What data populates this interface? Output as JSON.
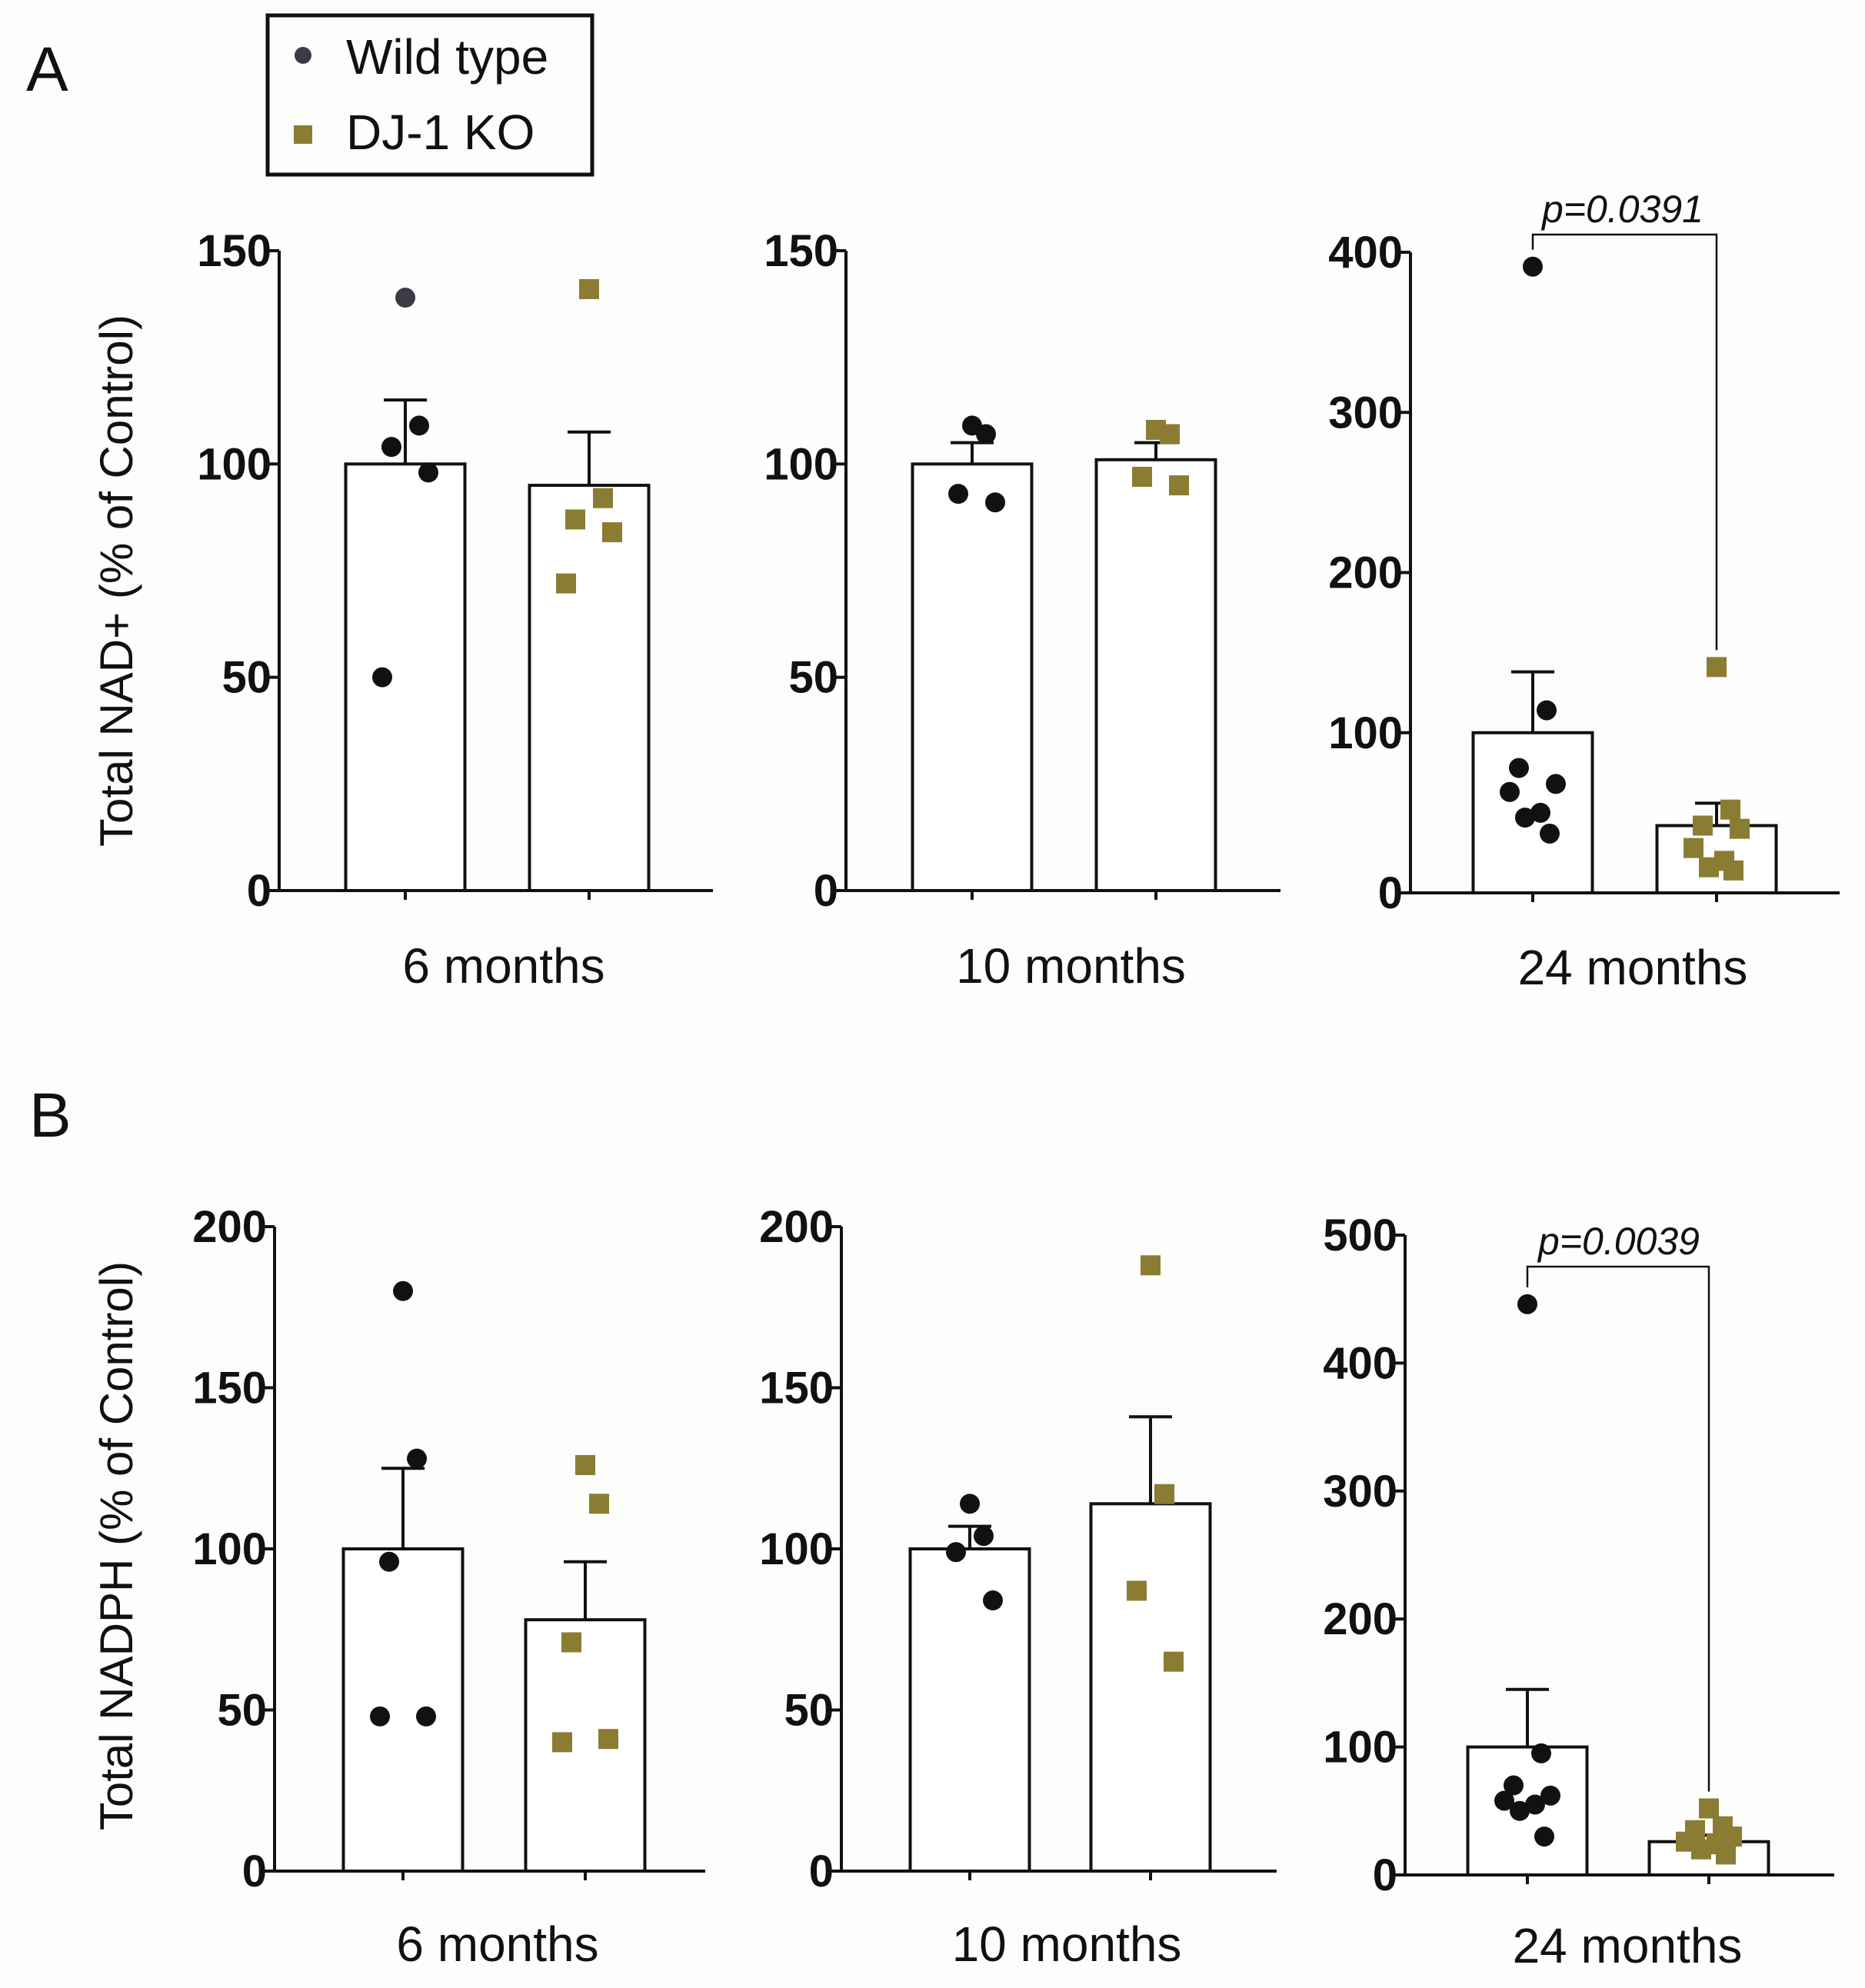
{
  "legend": {
    "items": [
      {
        "label": "Wild type",
        "color": "#3d3a45",
        "marker": "circle"
      },
      {
        "label": "DJ-1 KO",
        "color": "#8a7d33",
        "marker": "square"
      }
    ]
  },
  "colors": {
    "wt_summary": "#111111",
    "ko": "#8a7d33",
    "wt_legend": "#3d3a45"
  },
  "chart_data": [
    {
      "type": "bar",
      "panel": "A",
      "ylabel": "Total NAD+ (% of Control)",
      "xlabel": "6 months",
      "ylim": [
        0,
        150
      ],
      "yticks": [
        0,
        50,
        100,
        150
      ],
      "categories": [
        "Wild type",
        "DJ-1 KO"
      ],
      "series": [
        {
          "name": "Wild type",
          "mean": 100,
          "sem": 15,
          "points": [
            139,
            109,
            104,
            98,
            50
          ]
        },
        {
          "name": "DJ-1 KO",
          "mean": 95,
          "sem": 12.5,
          "points": [
            141,
            92,
            87,
            84,
            72
          ]
        }
      ]
    },
    {
      "type": "bar",
      "panel": "A",
      "ylabel": "",
      "xlabel": "10 months",
      "ylim": [
        0,
        150
      ],
      "yticks": [
        0,
        50,
        100,
        150
      ],
      "categories": [
        "Wild type",
        "DJ-1 KO"
      ],
      "series": [
        {
          "name": "Wild type",
          "mean": 100,
          "sem": 5,
          "points": [
            109,
            107,
            93,
            91
          ]
        },
        {
          "name": "DJ-1 KO",
          "mean": 101,
          "sem": 4,
          "points": [
            108,
            107,
            97,
            95
          ]
        }
      ]
    },
    {
      "type": "bar",
      "panel": "A",
      "ylabel": "",
      "xlabel": "24 months",
      "ylim": [
        0,
        400
      ],
      "yticks": [
        0,
        100,
        200,
        300,
        400
      ],
      "categories": [
        "Wild type",
        "DJ-1 KO"
      ],
      "significance": "p=0.0391",
      "series": [
        {
          "name": "Wild type",
          "mean": 100,
          "sem": 38,
          "points": [
            391,
            114,
            78,
            68,
            63,
            50,
            47,
            37
          ]
        },
        {
          "name": "DJ-1 KO",
          "mean": 42,
          "sem": 14,
          "points": [
            141,
            52,
            42,
            40,
            28,
            20,
            16,
            14
          ]
        }
      ]
    },
    {
      "type": "bar",
      "panel": "B",
      "ylabel": "Total NADPH (% of Control)",
      "xlabel": "6 months",
      "ylim": [
        0,
        200
      ],
      "yticks": [
        0,
        50,
        100,
        150,
        200
      ],
      "categories": [
        "Wild type",
        "DJ-1 KO"
      ],
      "series": [
        {
          "name": "Wild type",
          "mean": 100,
          "sem": 25,
          "points": [
            180,
            128,
            96,
            48,
            48
          ]
        },
        {
          "name": "DJ-1 KO",
          "mean": 78,
          "sem": 18,
          "points": [
            126,
            114,
            71,
            41,
            40
          ]
        }
      ]
    },
    {
      "type": "bar",
      "panel": "B",
      "ylabel": "",
      "xlabel": "10 months",
      "ylim": [
        0,
        200
      ],
      "yticks": [
        0,
        50,
        100,
        150,
        200
      ],
      "categories": [
        "Wild type",
        "DJ-1 KO"
      ],
      "series": [
        {
          "name": "Wild type",
          "mean": 100,
          "sem": 7,
          "points": [
            114,
            104,
            99,
            84
          ]
        },
        {
          "name": "DJ-1 KO",
          "mean": 114,
          "sem": 27,
          "points": [
            188,
            117,
            87,
            65
          ]
        }
      ]
    },
    {
      "type": "bar",
      "panel": "B",
      "ylabel": "",
      "xlabel": "24 months",
      "ylim": [
        0,
        500
      ],
      "yticks": [
        0,
        100,
        200,
        300,
        400,
        500
      ],
      "categories": [
        "Wild type",
        "DJ-1 KO"
      ],
      "significance": "p=0.0039",
      "series": [
        {
          "name": "Wild type",
          "mean": 100,
          "sem": 45,
          "points": [
            446,
            95,
            70,
            62,
            58,
            55,
            50,
            30
          ]
        },
        {
          "name": "DJ-1 KO",
          "mean": 26,
          "sem": 5,
          "points": [
            52,
            38,
            35,
            30,
            26,
            24,
            20,
            16
          ]
        }
      ]
    }
  ],
  "panel_labels": [
    "A",
    "B"
  ]
}
